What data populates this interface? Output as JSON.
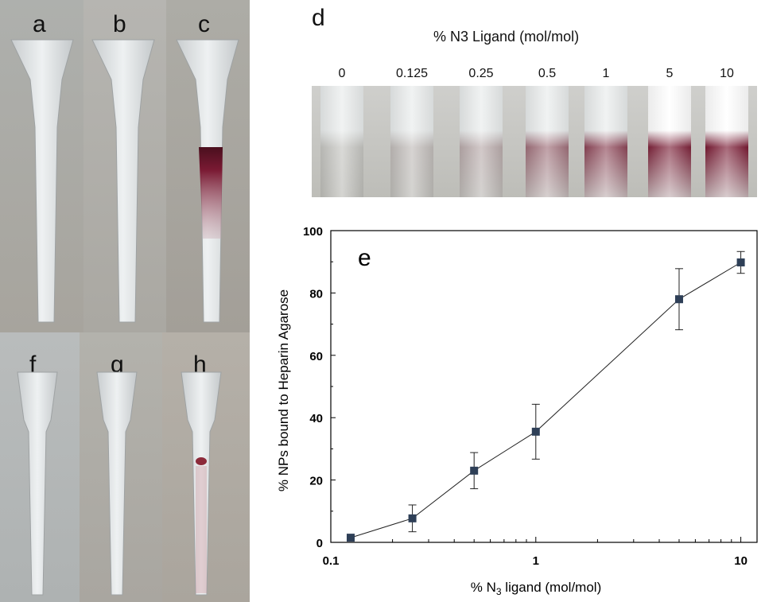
{
  "photo_panels": {
    "top": [
      "a",
      "b",
      "c"
    ],
    "bottom": [
      "f",
      "g",
      "h"
    ],
    "d": {
      "letter": "d",
      "title": "% N3 Ligand (mol/mol)",
      "labels": [
        "0",
        "0.125",
        "0.25",
        "0.5",
        "1",
        "5",
        "10"
      ]
    }
  },
  "colors": {
    "tube_plastic": "#e6e9ea",
    "bound_np": "#7a1a33",
    "marker": "#2e3f57",
    "photo_background": "#b4b2ab"
  },
  "chart_data": {
    "type": "line",
    "panel_letter": "e",
    "xlabel_prefix": "% N",
    "xlabel_sub": "3",
    "xlabel_suffix": " ligand (mol/mol)",
    "ylabel": "% NPs bound to Heparin Agarose",
    "x_scale": "log",
    "xlim": [
      0.1,
      12
    ],
    "ylim": [
      0,
      100
    ],
    "x_ticks": [
      0.1,
      1,
      10
    ],
    "x_tick_labels": [
      "0.1",
      "1",
      "10"
    ],
    "y_ticks": [
      0,
      20,
      40,
      60,
      80,
      100
    ],
    "y_tick_labels": [
      "0",
      "20",
      "40",
      "60",
      "80",
      "100"
    ],
    "grid": false,
    "series": [
      {
        "x": [
          0.125,
          0.25,
          0.5,
          1,
          5,
          10
        ],
        "y": [
          1.5,
          7.7,
          23.0,
          35.5,
          78.0,
          89.8
        ],
        "err": [
          0.5,
          4.3,
          5.8,
          8.8,
          9.8,
          3.5
        ]
      }
    ]
  }
}
